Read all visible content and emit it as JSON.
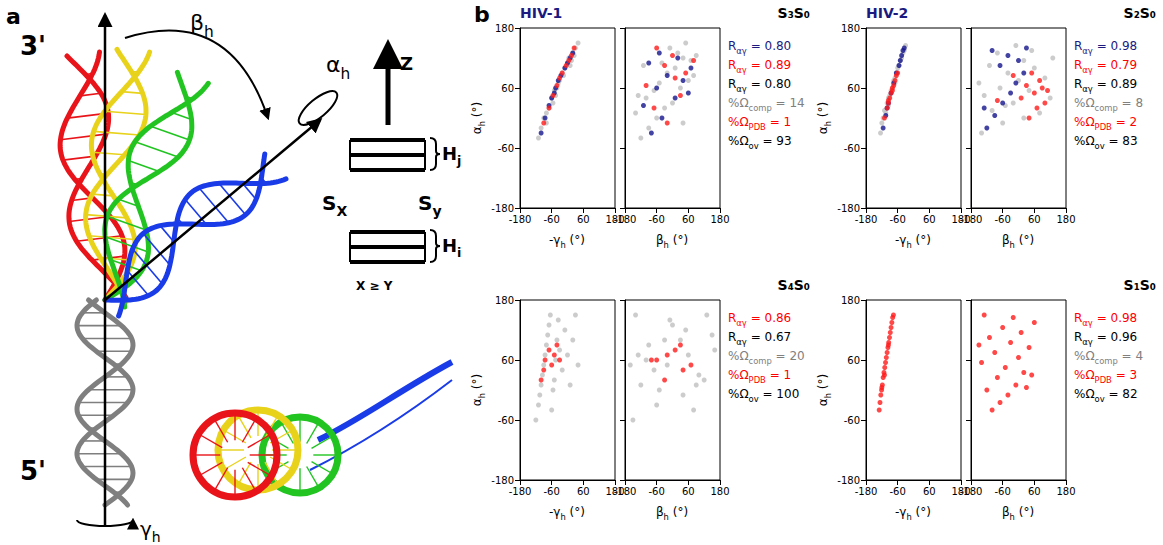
{
  "panel_a": {
    "letter": "a",
    "labels": {
      "top": "3'",
      "bottom": "5'",
      "beta": {
        "main": "β",
        "sub": "h"
      },
      "alpha": {
        "main": "α",
        "sub": "h"
      },
      "gamma": {
        "main": "γ",
        "sub": "h"
      },
      "z": "Z",
      "hj": {
        "main": "H",
        "sub": "j"
      },
      "hi": {
        "main": "H",
        "sub": "i"
      },
      "sx": {
        "main": "S",
        "sub": "X"
      },
      "sy": {
        "main": "S",
        "sub": "y"
      },
      "rule": "X ≥ Y"
    }
  },
  "chart_data": {
    "type": "scatter",
    "letter": "b",
    "xlabel": {
      "main": "-γ",
      "sub": "h",
      "rest": " (°)"
    },
    "ylabel": {
      "main": "β",
      "sub": "h",
      "rest": " (°)"
    },
    "zlabel": {
      "main": "α",
      "sub": "h",
      "rest": " (°)"
    },
    "xlim": [
      -180,
      180
    ],
    "xticks": [
      -180,
      -60,
      60,
      180
    ],
    "ylim": [
      -180,
      180
    ],
    "yticks": [
      -180,
      -60,
      60,
      180
    ],
    "zlim": [
      -180,
      180
    ],
    "zticks": [
      -180,
      -60,
      60,
      180
    ],
    "grid": false,
    "panels": [
      {
        "title_left": "HIV-1",
        "title_left_color": "#1a1a80",
        "title": "S₃S₀",
        "series": [
          {
            "color": "#bfbfbf",
            "values": [
              [
                -110,
                -120,
                -40
              ],
              [
                -100,
                -90,
                -20
              ],
              [
                -90,
                -60,
                0
              ],
              [
                -80,
                -140,
                10
              ],
              [
                -70,
                -30,
                20
              ],
              [
                -60,
                -100,
                40
              ],
              [
                -55,
                0,
                30
              ],
              [
                -50,
                -70,
                55
              ],
              [
                -40,
                30,
                60
              ],
              [
                -35,
                -50,
                70
              ],
              [
                -30,
                60,
                75
              ],
              [
                -20,
                -20,
                90
              ],
              [
                -15,
                80,
                85
              ],
              [
                -10,
                10,
                100
              ],
              [
                0,
                -40,
                110
              ],
              [
                5,
                40,
                120
              ],
              [
                10,
                -110,
                105
              ],
              [
                20,
                20,
                130
              ],
              [
                25,
                90,
                125
              ],
              [
                30,
                -10,
                140
              ],
              [
                40,
                50,
                150
              ],
              [
                -80,
                40,
                -10
              ],
              [
                -45,
                -130,
                45
              ],
              [
                15,
                70,
                115
              ]
            ]
          },
          {
            "color": "#14148c",
            "values": [
              [
                -100,
                -80,
                -30
              ],
              [
                -85,
                -40,
                0
              ],
              [
                -70,
                -110,
                25
              ],
              [
                -60,
                10,
                40
              ],
              [
                -45,
                -60,
                60
              ],
              [
                -35,
                40,
                75
              ],
              [
                -25,
                -20,
                85
              ],
              [
                -10,
                70,
                100
              ],
              [
                0,
                -90,
                110
              ],
              [
                10,
                20,
                120
              ],
              [
                20,
                -50,
                130
              ],
              [
                -50,
                60,
                50
              ]
            ]
          },
          {
            "color": "#ff1a1a",
            "values": [
              [
                -90,
                -20,
                -10
              ],
              [
                -70,
                -70,
                20
              ],
              [
                -55,
                30,
                45
              ],
              [
                -40,
                -100,
                65
              ],
              [
                -20,
                50,
                90
              ],
              [
                -5,
                -30,
                105
              ],
              [
                5,
                80,
                115
              ],
              [
                15,
                0,
                125
              ],
              [
                25,
                -60,
                140
              ],
              [
                -30,
                10,
                80
              ]
            ]
          }
        ],
        "annotations": [
          {
            "main": "R",
            "sub": "αγ",
            "rest": " = 0.80",
            "color": "#1a1a80"
          },
          {
            "main": "R",
            "sub": "αγ",
            "rest": " = 0.89",
            "color": "#ff0000"
          },
          {
            "main": "R",
            "sub": "αγ",
            "rest": " = 0.80",
            "color": "#000000"
          },
          {
            "main": "%Ω",
            "sub": "comp",
            "rest": " = 14",
            "color": "#808080"
          },
          {
            "main": "%Ω",
            "sub": "PDB",
            "rest": " = 1",
            "color": "#ff0000"
          },
          {
            "main": "%Ω",
            "sub": "ov",
            "rest": " = 93",
            "color": "#000000"
          }
        ]
      },
      {
        "title_left": "HIV-2",
        "title_left_color": "#1a1a80",
        "title": "S₂S₀",
        "series": [
          {
            "color": "#bfbfbf",
            "values": [
              [
                -125,
                -140,
                -30
              ],
              [
                -120,
                -60,
                -10
              ],
              [
                -115,
                20,
                0
              ],
              [
                -110,
                -100,
                15
              ],
              [
                -105,
                80,
                10
              ],
              [
                -100,
                -20,
                30
              ],
              [
                -95,
                120,
                40
              ],
              [
                -90,
                -130,
                45
              ],
              [
                -85,
                40,
                55
              ],
              [
                -80,
                -70,
                60
              ],
              [
                -75,
                0,
                75
              ],
              [
                -70,
                100,
                80
              ],
              [
                -65,
                -40,
                90
              ],
              [
                -60,
                60,
                100
              ],
              [
                -55,
                -110,
                105
              ],
              [
                -50,
                20,
                115
              ],
              [
                -45,
                130,
                120
              ],
              [
                -40,
                -80,
                130
              ],
              [
                -35,
                50,
                135
              ],
              [
                -30,
                -10,
                145
              ],
              [
                -95,
                -50,
                25
              ],
              [
                -70,
                -150,
                70
              ]
            ]
          },
          {
            "color": "#14148c",
            "values": [
              [
                -115,
                -120,
                -20
              ],
              [
                -105,
                -90,
                5
              ],
              [
                -95,
                -60,
                30
              ],
              [
                -85,
                -30,
                50
              ],
              [
                -75,
                -10,
                70
              ],
              [
                -65,
                20,
                90
              ],
              [
                -55,
                -70,
                105
              ],
              [
                -50,
                0,
                115
              ],
              [
                -45,
                -40,
                125
              ],
              [
                -40,
                -100,
                135
              ],
              [
                -35,
                30,
                140
              ],
              [
                -100,
                -130,
                20
              ]
            ]
          },
          {
            "color": "#ff1a1a",
            "values": [
              [
                -110,
                40,
                0
              ],
              [
                -100,
                70,
                20
              ],
              [
                -95,
                100,
                30
              ],
              [
                -90,
                10,
                40
              ],
              [
                -85,
                60,
                50
              ],
              [
                -80,
                110,
                55
              ],
              [
                -75,
                30,
                65
              ],
              [
                -70,
                80,
                75
              ],
              [
                -65,
                -20,
                85
              ],
              [
                -60,
                50,
                90
              ],
              [
                -95,
                -80,
                35
              ],
              [
                -80,
                90,
                60
              ]
            ]
          }
        ],
        "annotations": [
          {
            "main": "R",
            "sub": "αγ",
            "rest": " = 0.98",
            "color": "#1a1a80"
          },
          {
            "main": "R",
            "sub": "αγ",
            "rest": " = 0.79",
            "color": "#ff0000"
          },
          {
            "main": "R",
            "sub": "αγ",
            "rest": " = 0.89",
            "color": "#000000"
          },
          {
            "main": "%Ω",
            "sub": "comp",
            "rest": " = 8",
            "color": "#808080"
          },
          {
            "main": "%Ω",
            "sub": "PDB",
            "rest": " = 2",
            "color": "#ff0000"
          },
          {
            "main": "%Ω",
            "sub": "ov",
            "rest": " = 83",
            "color": "#000000"
          }
        ]
      },
      {
        "title": "S₄S₀",
        "series": [
          {
            "color": "#bfbfbf",
            "values": [
              [
                -120,
                -150,
                -60
              ],
              [
                -110,
                -60,
                -30
              ],
              [
                -105,
                40,
                -10
              ],
              [
                -100,
                -120,
                10
              ],
              [
                -95,
                100,
                30
              ],
              [
                -90,
                -20,
                50
              ],
              [
                -85,
                60,
                70
              ],
              [
                -80,
                -90,
                90
              ],
              [
                -75,
                150,
                110
              ],
              [
                -70,
                0,
                130
              ],
              [
                -65,
                -140,
                150
              ],
              [
                -60,
                80,
                -40
              ],
              [
                -55,
                -50,
                0
              ],
              [
                -50,
                120,
                20
              ],
              [
                -45,
                -100,
                60
              ],
              [
                -40,
                30,
                100
              ],
              [
                -35,
                -10,
                140
              ],
              [
                -30,
                160,
                80
              ],
              [
                -20,
                -70,
                40
              ],
              [
                -10,
                50,
                120
              ],
              [
                0,
                -130,
                70
              ],
              [
                10,
                90,
                10
              ],
              [
                20,
                -30,
                100
              ],
              [
                30,
                130,
                150
              ],
              [
                40,
                -160,
                50
              ]
            ]
          },
          {
            "color": "#ff1a1a",
            "values": [
              [
                -100,
                -30,
                20
              ],
              [
                -90,
                40,
                40
              ],
              [
                -85,
                -60,
                60
              ],
              [
                -70,
                10,
                80
              ],
              [
                -60,
                70,
                50
              ],
              [
                -50,
                -20,
                70
              ],
              [
                -40,
                30,
                90
              ],
              [
                -30,
                -80,
                60
              ]
            ]
          }
        ],
        "annotations": [
          {
            "main": "R",
            "sub": "αγ",
            "rest": " = 0.86",
            "color": "#ff0000"
          },
          {
            "main": "R",
            "sub": "αγ",
            "rest": " = 0.67",
            "color": "#000000"
          },
          {
            "main": "%Ω",
            "sub": "comp",
            "rest": " = 20",
            "color": "#808080"
          },
          {
            "main": "%Ω",
            "sub": "PDB",
            "rest": " = 1",
            "color": "#ff0000"
          },
          {
            "main": "%Ω",
            "sub": "ov",
            "rest": " = 100",
            "color": "#000000"
          }
        ]
      },
      {
        "title": "S₁S₀",
        "series": [
          {
            "color": "#ff1a1a",
            "values": [
              [
                -130,
                -100,
                -40
              ],
              [
                -127,
                -70,
                -25
              ],
              [
                -124,
                -40,
                -10
              ],
              [
                -121,
                -120,
                0
              ],
              [
                -118,
                -10,
                10
              ],
              [
                -115,
                -80,
                25
              ],
              [
                -112,
                20,
                35
              ],
              [
                -109,
                -50,
                45
              ],
              [
                -106,
                -140,
                55
              ],
              [
                -103,
                0,
                65
              ],
              [
                -100,
                -90,
                75
              ],
              [
                -97,
                40,
                85
              ],
              [
                -94,
                -30,
                95
              ],
              [
                -91,
                -110,
                105
              ],
              [
                -88,
                10,
                115
              ],
              [
                -85,
                -60,
                125
              ],
              [
                -82,
                60,
                135
              ],
              [
                -79,
                -20,
                145
              ],
              [
                -76,
                -130,
                150
              ],
              [
                -110,
                50,
                30
              ],
              [
                -95,
                -150,
                90
              ],
              [
                -120,
                30,
                5
              ]
            ]
          }
        ],
        "annotations": [
          {
            "main": "R",
            "sub": "αγ",
            "rest": " = 0.98",
            "color": "#ff0000"
          },
          {
            "main": "R",
            "sub": "αγ",
            "rest": " = 0.96",
            "color": "#000000"
          },
          {
            "main": "%Ω",
            "sub": "comp",
            "rest": " = 4",
            "color": "#808080"
          },
          {
            "main": "%Ω",
            "sub": "PDB",
            "rest": " = 3",
            "color": "#ff0000"
          },
          {
            "main": "%Ω",
            "sub": "ov",
            "rest": " = 82",
            "color": "#000000"
          }
        ]
      }
    ]
  }
}
